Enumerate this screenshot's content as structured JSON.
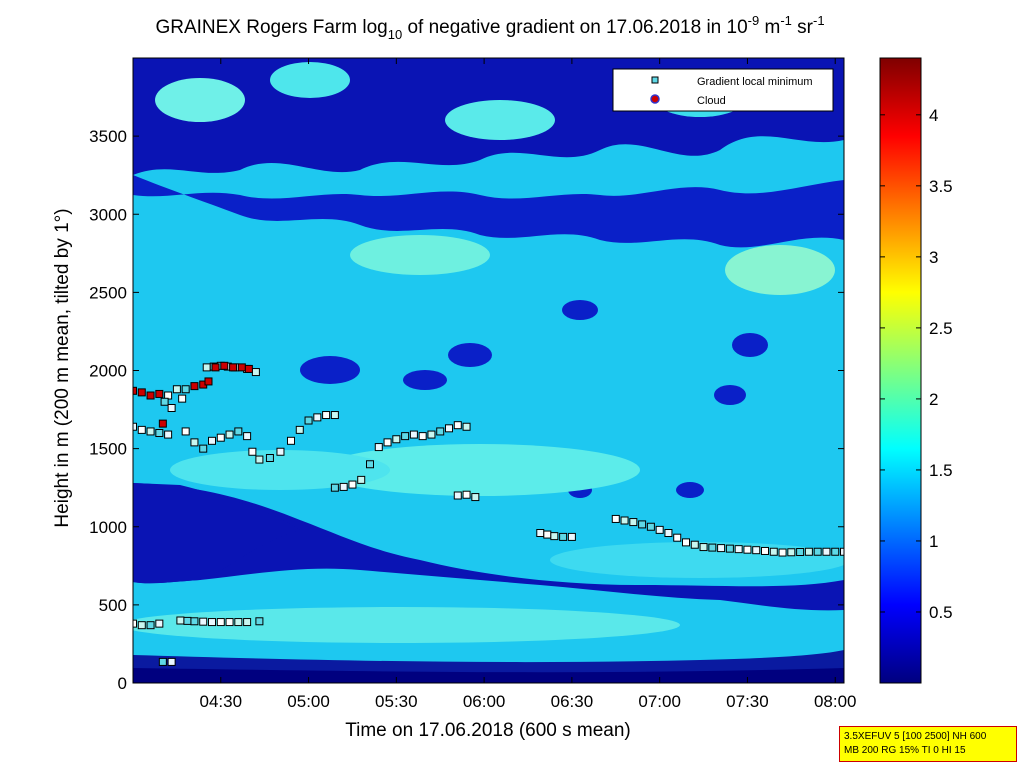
{
  "chart_data": {
    "type": "heatmap",
    "title": {
      "pre": "GRAINEX Rogers Farm log",
      "sub": "10",
      "mid": " of negative gradient on 17.06.2018 in 10",
      "sup1": "-9",
      "mid2": " m",
      "sup2": "-1",
      "mid3": " sr",
      "sup3": "-1"
    },
    "xlabel": "Time on 17.06.2018 (600 s mean)",
    "ylabel": "Height in m (200 m mean, tilted by 1°)",
    "x_range_hours": [
      4.0,
      8.05
    ],
    "y_range_m": [
      0,
      4000
    ],
    "x_ticks": [
      {
        "label": "04:30",
        "h": 4.5
      },
      {
        "label": "05:00",
        "h": 5.0
      },
      {
        "label": "05:30",
        "h": 5.5
      },
      {
        "label": "06:00",
        "h": 6.0
      },
      {
        "label": "06:30",
        "h": 6.5
      },
      {
        "label": "07:00",
        "h": 7.0
      },
      {
        "label": "07:30",
        "h": 7.5
      },
      {
        "label": "08:00",
        "h": 8.0
      }
    ],
    "y_ticks": [
      0,
      500,
      1000,
      1500,
      2000,
      2500,
      3000,
      3500
    ],
    "colorbar": {
      "range": [
        0,
        4.4
      ],
      "ticks": [
        0.5,
        1,
        1.5,
        2,
        2.5,
        3,
        3.5,
        4
      ],
      "colormap": "jet"
    },
    "legend": {
      "position": "top-right",
      "entries": [
        {
          "label": "Gradient local minimum",
          "color": "#5fd8e6"
        },
        {
          "label": "Cloud",
          "color": "#cc0000"
        }
      ]
    },
    "gradient_minima": [
      [
        [
          4.0,
          380
        ],
        [
          4.05,
          370
        ],
        [
          4.1,
          370
        ],
        [
          4.15,
          380
        ]
      ],
      [
        [
          4.27,
          400
        ],
        [
          4.35,
          395
        ],
        [
          4.45,
          390
        ],
        [
          4.55,
          390
        ],
        [
          4.65,
          390
        ],
        [
          4.72,
          395
        ]
      ],
      [
        [
          4.17,
          135
        ],
        [
          4.22,
          135
        ]
      ],
      [
        [
          4.0,
          1640
        ],
        [
          4.05,
          1620
        ],
        [
          4.1,
          1610
        ],
        [
          4.15,
          1600
        ],
        [
          4.2,
          1590
        ]
      ],
      [
        [
          4.3,
          1610
        ],
        [
          4.35,
          1540
        ],
        [
          4.4,
          1500
        ],
        [
          4.45,
          1550
        ],
        [
          4.5,
          1570
        ],
        [
          4.55,
          1590
        ],
        [
          4.6,
          1610
        ],
        [
          4.65,
          1580
        ],
        [
          4.68,
          1480
        ]
      ],
      [
        [
          4.72,
          1430
        ],
        [
          4.78,
          1440
        ],
        [
          4.84,
          1480
        ],
        [
          4.9,
          1550
        ],
        [
          4.95,
          1620
        ],
        [
          5.0,
          1680
        ],
        [
          5.05,
          1700
        ],
        [
          5.1,
          1715
        ],
        [
          5.15,
          1715
        ]
      ],
      [
        [
          5.15,
          1250
        ],
        [
          5.2,
          1255
        ],
        [
          5.25,
          1270
        ],
        [
          5.3,
          1300
        ],
        [
          5.35,
          1400
        ],
        [
          5.4,
          1510
        ],
        [
          5.45,
          1540
        ],
        [
          5.5,
          1560
        ],
        [
          5.55,
          1580
        ],
        [
          5.6,
          1590
        ],
        [
          5.65,
          1580
        ],
        [
          5.7,
          1590
        ],
        [
          5.75,
          1610
        ],
        [
          5.8,
          1630
        ],
        [
          5.85,
          1650
        ],
        [
          5.9,
          1640
        ]
      ],
      [
        [
          5.85,
          1200
        ],
        [
          5.9,
          1205
        ],
        [
          5.95,
          1190
        ]
      ],
      [
        [
          4.2,
          1840
        ],
        [
          4.25,
          1880
        ],
        [
          4.3,
          1880
        ]
      ],
      [
        [
          4.42,
          2020
        ],
        [
          4.5,
          2030
        ],
        [
          4.58,
          2020
        ],
        [
          4.65,
          2010
        ],
        [
          4.7,
          1990
        ]
      ],
      [
        [
          4.18,
          1800
        ],
        [
          4.22,
          1760
        ],
        [
          4.28,
          1820
        ]
      ],
      [
        [
          6.32,
          960
        ],
        [
          6.36,
          950
        ],
        [
          6.4,
          940
        ],
        [
          6.45,
          935
        ],
        [
          6.5,
          935
        ]
      ],
      [
        [
          6.75,
          1050
        ],
        [
          6.85,
          1030
        ],
        [
          6.95,
          1000
        ],
        [
          7.05,
          960
        ],
        [
          7.15,
          900
        ],
        [
          7.25,
          870
        ],
        [
          7.4,
          860
        ],
        [
          7.55,
          850
        ],
        [
          7.7,
          835
        ],
        [
          7.85,
          840
        ],
        [
          8.0,
          840
        ],
        [
          8.05,
          840
        ]
      ]
    ],
    "cloud": [
      [
        4.0,
        1870
      ],
      [
        4.05,
        1860
      ],
      [
        4.1,
        1840
      ],
      [
        4.15,
        1850
      ],
      [
        4.17,
        1660
      ],
      [
        4.35,
        1900
      ],
      [
        4.4,
        1910
      ],
      [
        4.43,
        1930
      ],
      [
        4.47,
        2020
      ],
      [
        4.52,
        2030
      ],
      [
        4.57,
        2020
      ],
      [
        4.62,
        2020
      ],
      [
        4.66,
        2010
      ]
    ]
  },
  "info_box": {
    "line1": "3.5XEFUV 5 [100 2500] NH 600",
    "line2": "MB 200 RG 15% TI 0 HI 15"
  }
}
